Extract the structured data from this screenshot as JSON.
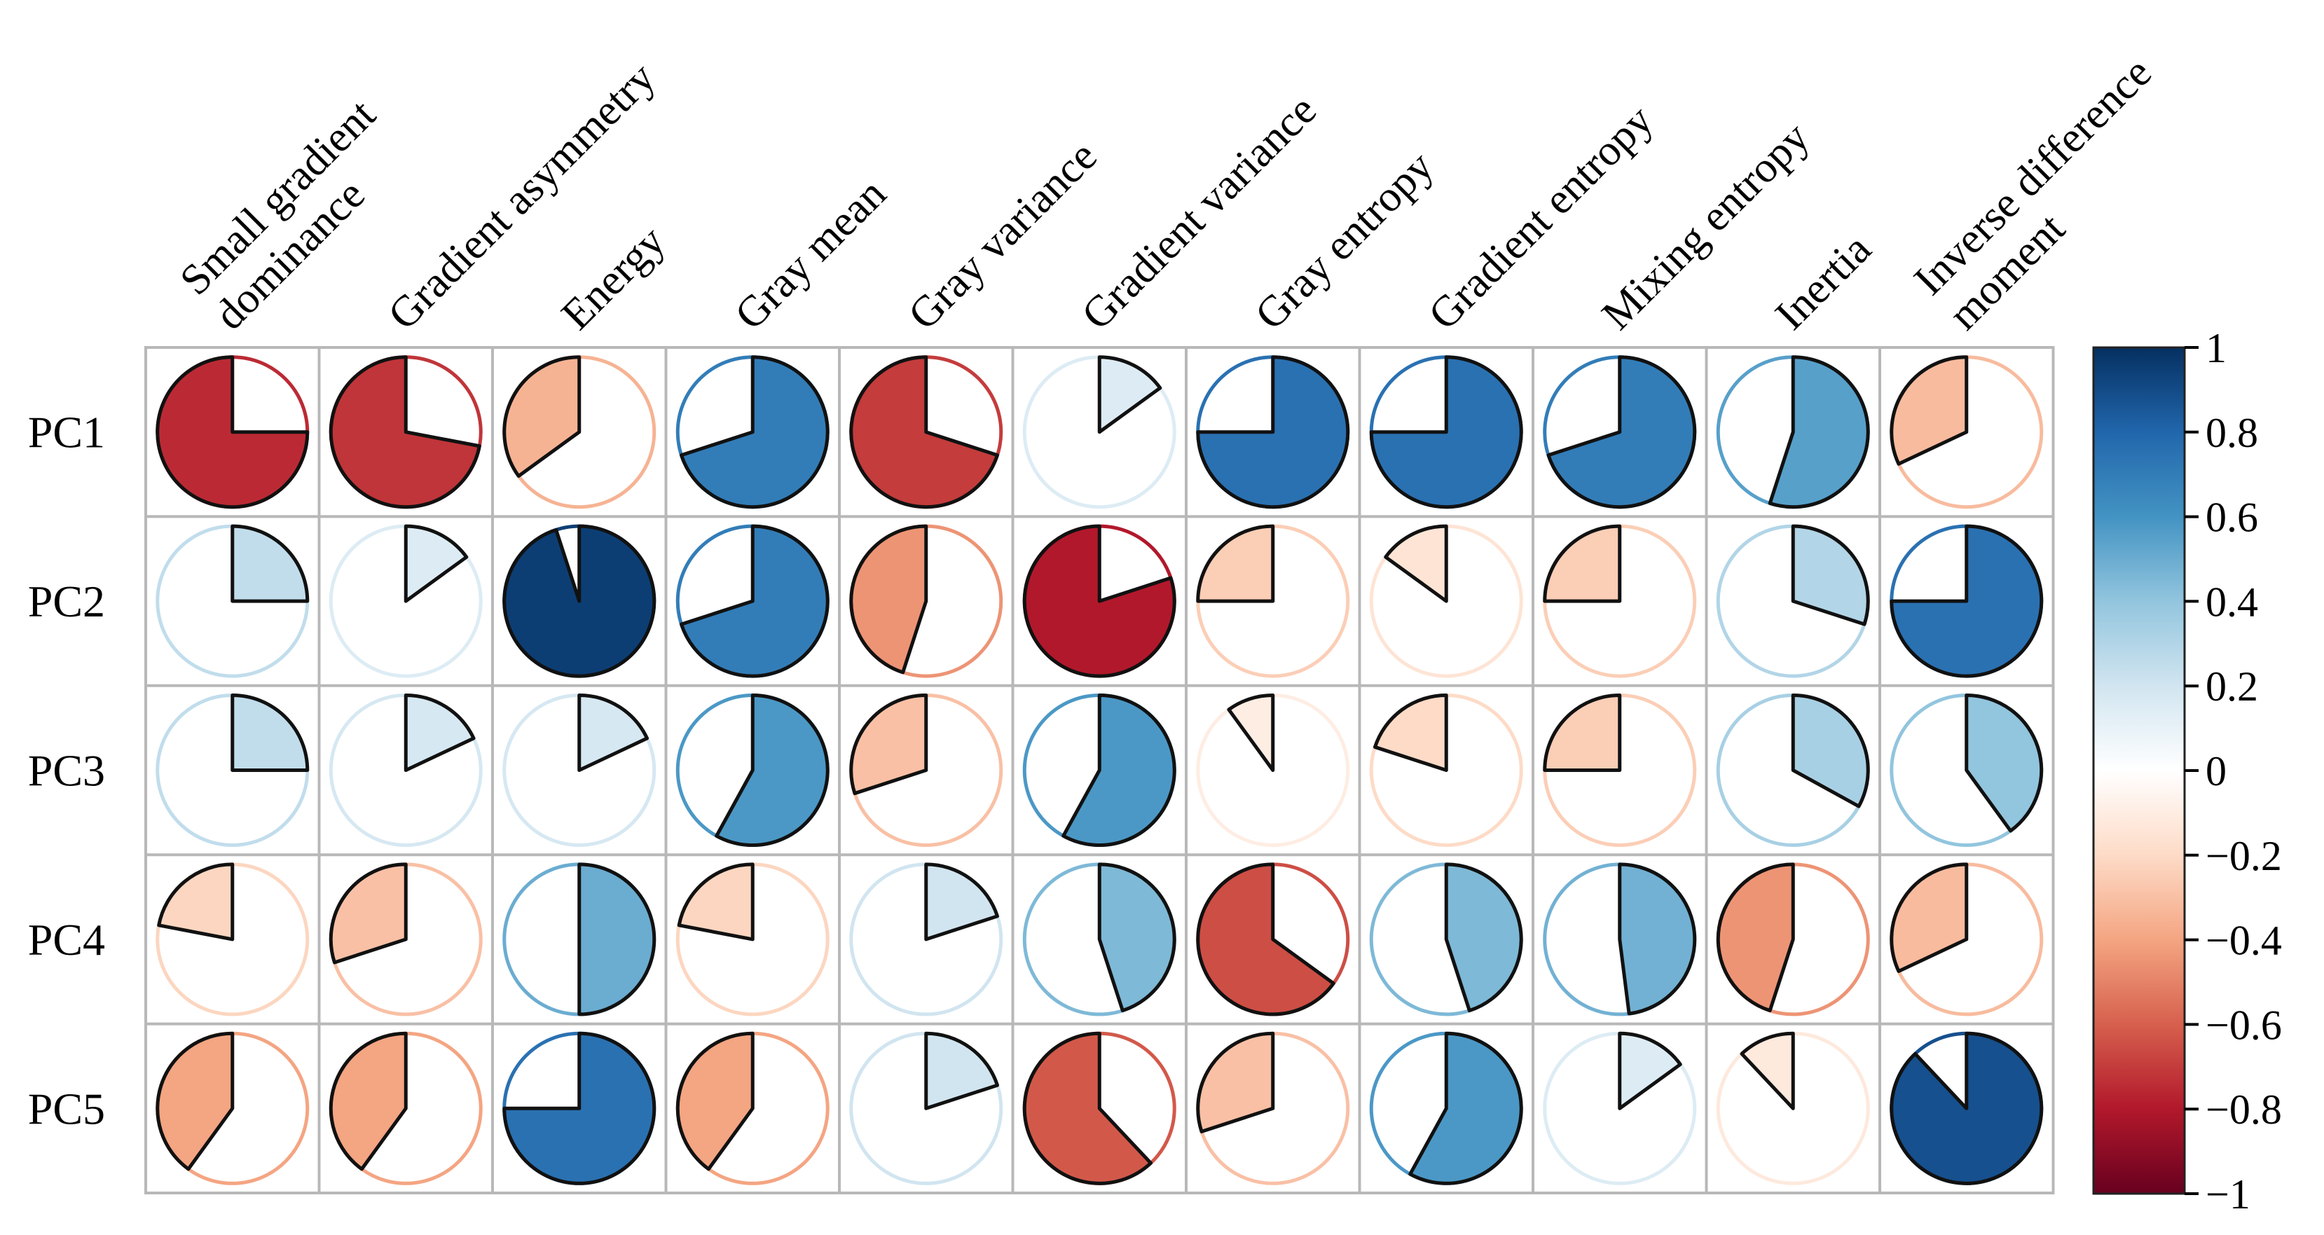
{
  "chart_data": {
    "type": "heatmap",
    "style": "pie-glyph correlation matrix",
    "columns": [
      [
        "Small gradient",
        "dominance"
      ],
      [
        "Gradient asymmetry"
      ],
      [
        "Energy"
      ],
      [
        "Gray mean"
      ],
      [
        "Gray variance"
      ],
      [
        "Gradient variance"
      ],
      [
        "Gray entropy"
      ],
      [
        "Gradient entropy"
      ],
      [
        "Mixing entropy"
      ],
      [
        "Inertia"
      ],
      [
        "Inverse difference",
        "moment"
      ]
    ],
    "rows": [
      "PC1",
      "PC2",
      "PC3",
      "PC4",
      "PC5"
    ],
    "values": [
      [
        -0.75,
        -0.72,
        -0.35,
        0.7,
        -0.7,
        0.15,
        0.75,
        0.75,
        0.7,
        0.55,
        -0.32
      ],
      [
        0.25,
        0.15,
        0.95,
        0.7,
        -0.45,
        -0.8,
        -0.25,
        -0.15,
        -0.25,
        0.3,
        0.75
      ],
      [
        0.25,
        0.18,
        0.18,
        0.58,
        -0.3,
        0.58,
        -0.1,
        -0.2,
        -0.25,
        0.33,
        0.4
      ],
      [
        -0.22,
        -0.3,
        0.5,
        -0.22,
        0.2,
        0.45,
        -0.65,
        0.45,
        0.48,
        -0.45,
        -0.32
      ],
      [
        -0.4,
        -0.4,
        0.75,
        -0.4,
        0.2,
        -0.62,
        -0.3,
        0.58,
        0.15,
        -0.12,
        0.88
      ]
    ],
    "color_scale": {
      "min": -1,
      "max": 1,
      "stops": [
        {
          "v": -1.0,
          "color": "#67001f"
        },
        {
          "v": -0.8,
          "color": "#b2182b"
        },
        {
          "v": -0.6,
          "color": "#d6604d"
        },
        {
          "v": -0.4,
          "color": "#f4a582"
        },
        {
          "v": -0.2,
          "color": "#fddbc7"
        },
        {
          "v": 0.0,
          "color": "#ffffff"
        },
        {
          "v": 0.2,
          "color": "#d1e5f0"
        },
        {
          "v": 0.4,
          "color": "#92c5de"
        },
        {
          "v": 0.6,
          "color": "#4393c3"
        },
        {
          "v": 0.8,
          "color": "#2166ac"
        },
        {
          "v": 1.0,
          "color": "#053061"
        }
      ],
      "ticks": [
        "1",
        "0.8",
        "0.6",
        "0.4",
        "0.2",
        "0",
        "−0.2",
        "−0.4",
        "−0.6",
        "−0.8",
        "−1"
      ],
      "tick_values": [
        1,
        0.8,
        0.6,
        0.4,
        0.2,
        0,
        -0.2,
        -0.4,
        -0.6,
        -0.8,
        -1
      ]
    },
    "grid": true,
    "legend": "right"
  }
}
